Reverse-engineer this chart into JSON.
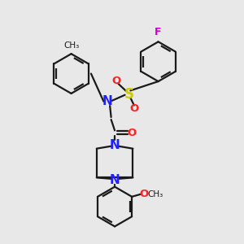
{
  "bg_color": "#e8e8e8",
  "bond_color": "#1a1a1a",
  "N_color": "#2020ff",
  "O_color": "#ff2020",
  "S_color": "#cccc00",
  "F_color": "#cc00cc",
  "lw": 1.6,
  "figsize": [
    3.0,
    3.0
  ],
  "dpi": 100,
  "xlim": [
    0,
    10
  ],
  "ylim": [
    0,
    10
  ]
}
